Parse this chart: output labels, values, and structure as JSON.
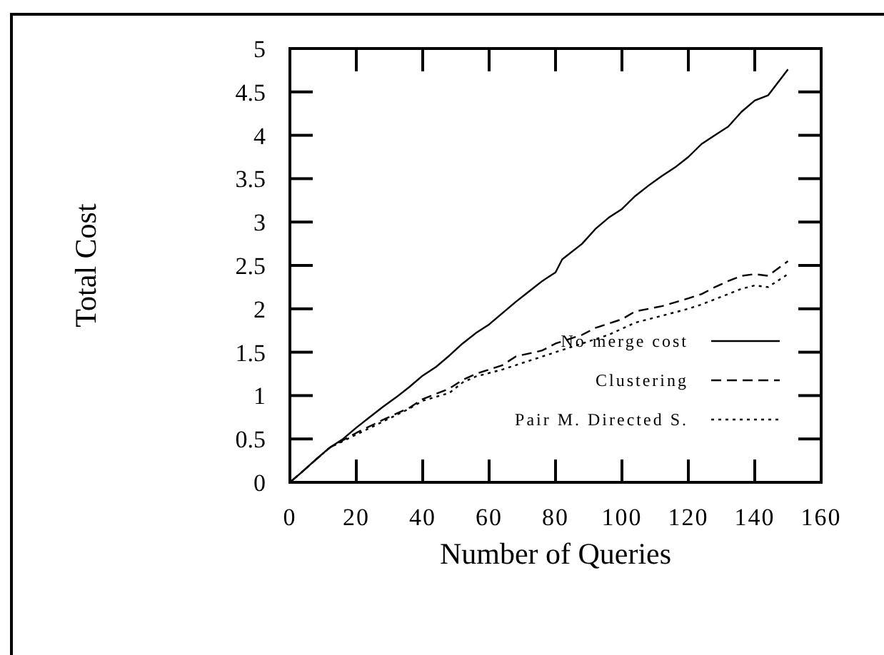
{
  "chart_data": {
    "type": "line",
    "xlabel": "Number of Queries",
    "ylabel": "Total Cost",
    "xlim": [
      0,
      160
    ],
    "ylim": [
      0,
      5
    ],
    "xticks": [
      0,
      20,
      40,
      60,
      80,
      100,
      120,
      140,
      160
    ],
    "yticks": [
      0,
      0.5,
      1,
      1.5,
      2,
      2.5,
      3,
      3.5,
      4,
      4.5,
      5
    ],
    "grid": false,
    "legend": "bottom right",
    "marker": "none",
    "series": [
      {
        "name": "No merge cost",
        "color": "#000000",
        "line_style": "solid",
        "x": [
          0,
          4,
          8,
          12,
          16,
          20,
          24,
          28,
          32,
          36,
          40,
          44,
          48,
          52,
          56,
          60,
          64,
          68,
          72,
          76,
          80,
          82,
          88,
          92,
          96,
          100,
          104,
          108,
          112,
          116,
          120,
          124,
          128,
          132,
          136,
          140,
          144,
          150
        ],
        "values": [
          0,
          0.13,
          0.27,
          0.4,
          0.5,
          0.63,
          0.75,
          0.87,
          0.98,
          1.1,
          1.23,
          1.33,
          1.46,
          1.6,
          1.72,
          1.82,
          1.95,
          2.08,
          2.2,
          2.32,
          2.42,
          2.57,
          2.75,
          2.92,
          3.05,
          3.15,
          3.3,
          3.42,
          3.53,
          3.63,
          3.75,
          3.9,
          4.0,
          4.1,
          4.27,
          4.4,
          4.46,
          4.76
        ]
      },
      {
        "name": "Clustering",
        "color": "#000000",
        "line_style": "dashed",
        "x": [
          0,
          12,
          20,
          28,
          36,
          40,
          48,
          52,
          56,
          64,
          68,
          76,
          80,
          88,
          92,
          100,
          104,
          112,
          120,
          124,
          128,
          132,
          136,
          140,
          144,
          150
        ],
        "values": [
          0,
          0.4,
          0.57,
          0.72,
          0.86,
          0.96,
          1.08,
          1.18,
          1.25,
          1.35,
          1.45,
          1.52,
          1.6,
          1.7,
          1.78,
          1.88,
          1.97,
          2.03,
          2.12,
          2.17,
          2.25,
          2.32,
          2.38,
          2.4,
          2.38,
          2.55
        ]
      },
      {
        "name": "Pair M. Directed S.",
        "color": "#000000",
        "line_style": "dotted",
        "x": [
          0,
          12,
          20,
          28,
          36,
          40,
          48,
          52,
          56,
          64,
          72,
          80,
          88,
          96,
          104,
          112,
          120,
          124,
          132,
          136,
          140,
          144,
          150
        ],
        "values": [
          0,
          0.4,
          0.55,
          0.7,
          0.85,
          0.94,
          1.03,
          1.15,
          1.22,
          1.3,
          1.4,
          1.5,
          1.6,
          1.7,
          1.84,
          1.92,
          2.0,
          2.05,
          2.17,
          2.23,
          2.27,
          2.25,
          2.4
        ]
      }
    ]
  }
}
